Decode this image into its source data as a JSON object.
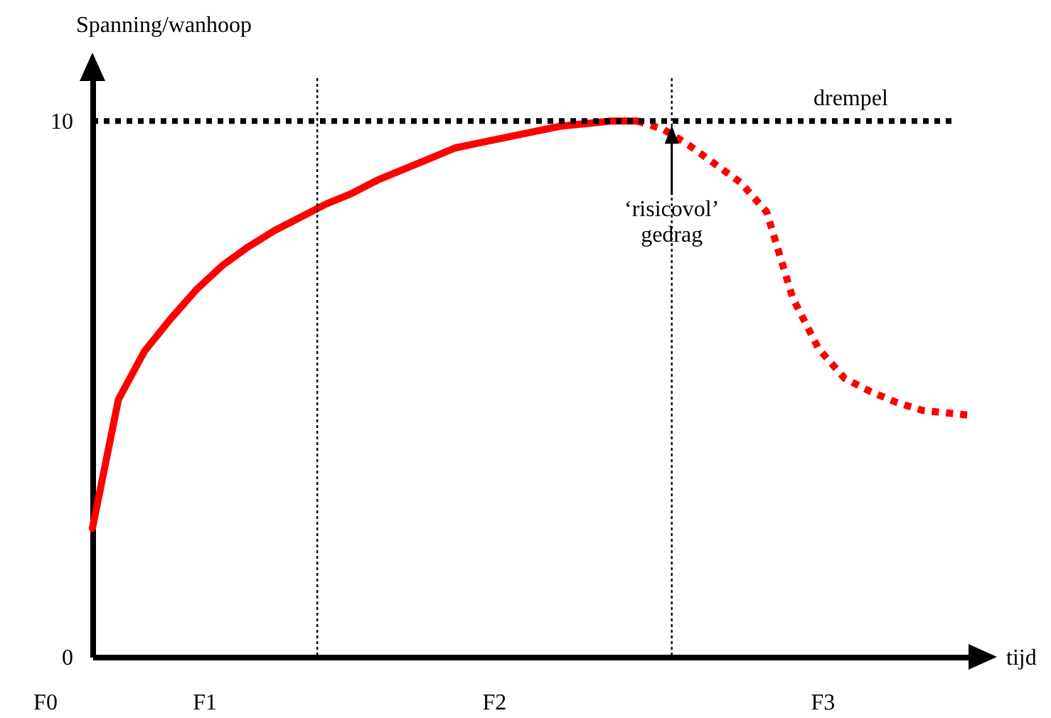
{
  "chart_data": {
    "type": "line",
    "xlabel": "tijd",
    "ylabel": "Spanning/wanhoop",
    "categories": [
      null,
      null,
      null,
      null,
      null,
      null,
      null,
      null,
      null,
      null,
      null,
      null,
      null,
      null,
      null,
      null,
      null,
      null,
      null,
      null,
      null,
      null,
      null,
      null,
      null,
      null,
      null,
      null,
      null,
      null,
      null,
      null,
      null,
      null,
      null
    ],
    "ylim": [
      0,
      10.8
    ],
    "yticks": [
      0,
      10
    ],
    "series": [
      {
        "color": "#ff0000",
        "line_style": "solid",
        "values": [
          2.4,
          4.8,
          5.7,
          6.3,
          6.85,
          7.3,
          7.65,
          7.95,
          8.2,
          8.45,
          8.65,
          8.9,
          9.1,
          9.3,
          9.5,
          9.6,
          9.7,
          9.8,
          9.9,
          9.95,
          10,
          10,
          null,
          null,
          null,
          null,
          null,
          null,
          null,
          null,
          null,
          null,
          null,
          null,
          null
        ]
      },
      {
        "color": "#ff0000",
        "line_style": "dotted",
        "values": [
          null,
          null,
          null,
          null,
          null,
          null,
          null,
          null,
          null,
          null,
          null,
          null,
          null,
          null,
          null,
          null,
          null,
          null,
          null,
          null,
          null,
          10,
          9.85,
          9.55,
          9.2,
          8.85,
          8.3,
          6.7,
          5.75,
          5.2,
          4.95,
          4.75,
          4.6,
          4.55,
          4.5
        ]
      }
    ],
    "ref_lines": [
      {
        "axis": "y",
        "value": 10,
        "label": "drempel",
        "color": "#000000",
        "line_style": "dotted"
      }
    ],
    "annotations": [
      "F0",
      "F1",
      "F2",
      "F3",
      "‘risicovol’ gedrag"
    ],
    "grid": false,
    "marker": "none"
  }
}
